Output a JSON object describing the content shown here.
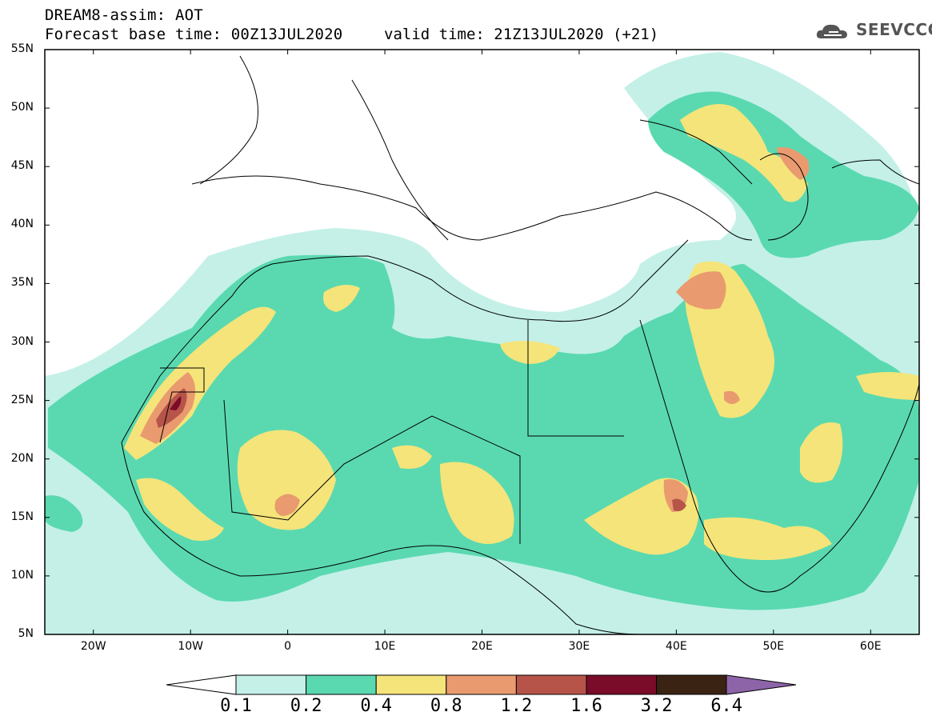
{
  "title_line1": "DREAM8-assim: AOT",
  "title_line2": "Forecast base time: 00Z13JUL2020",
  "valid_time": "valid time: 21Z13JUL2020 (+21)",
  "logo_text": "SEEVCCC",
  "lat_labels": [
    "55N",
    "50N",
    "45N",
    "40N",
    "35N",
    "30N",
    "25N",
    "20N",
    "15N",
    "10N",
    "5N"
  ],
  "lon_labels": [
    "20W",
    "10W",
    "0",
    "10E",
    "20E",
    "30E",
    "40E",
    "50E",
    "60E"
  ],
  "colorbar": {
    "ticks": [
      "0.1",
      "0.2",
      "0.4",
      "0.8",
      "1.2",
      "1.6",
      "3.2",
      "6.4"
    ],
    "colors": [
      "#ffffff",
      "#c4f0e8",
      "#5ad9b0",
      "#f5e47a",
      "#e99a6e",
      "#b7544a",
      "#7a0c2a",
      "#3b2314",
      "#8e64a8"
    ]
  },
  "map_extent": {
    "lon_min": -25,
    "lon_max": 65,
    "lat_min": 5,
    "lat_max": 55
  }
}
